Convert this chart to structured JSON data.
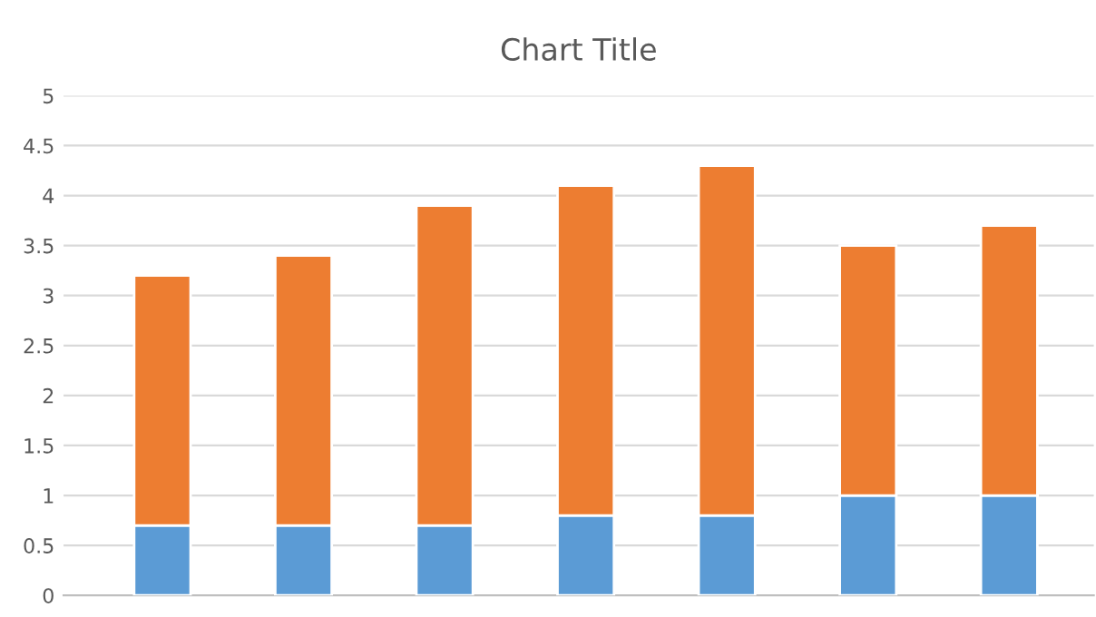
{
  "chart_data": {
    "type": "bar",
    "title": "Chart Title",
    "stacked": true,
    "categories": [
      null,
      null,
      null,
      null,
      null,
      null,
      null
    ],
    "series": [
      {
        "color": "#5b9bd5",
        "values": [
          0.7,
          0.7,
          0.7,
          0.8,
          0.8,
          1,
          1
        ]
      },
      {
        "color": "#ed7d31",
        "values": [
          2.5,
          2.7,
          3.2,
          3.3,
          3.5,
          2.5,
          2.7
        ]
      }
    ],
    "ylim": [
      0,
      5
    ],
    "yticks": [
      0,
      0.5,
      1,
      1.5,
      2,
      2.5,
      3,
      3.5,
      4,
      4.5,
      5
    ],
    "grid": "y",
    "legend": false
  }
}
